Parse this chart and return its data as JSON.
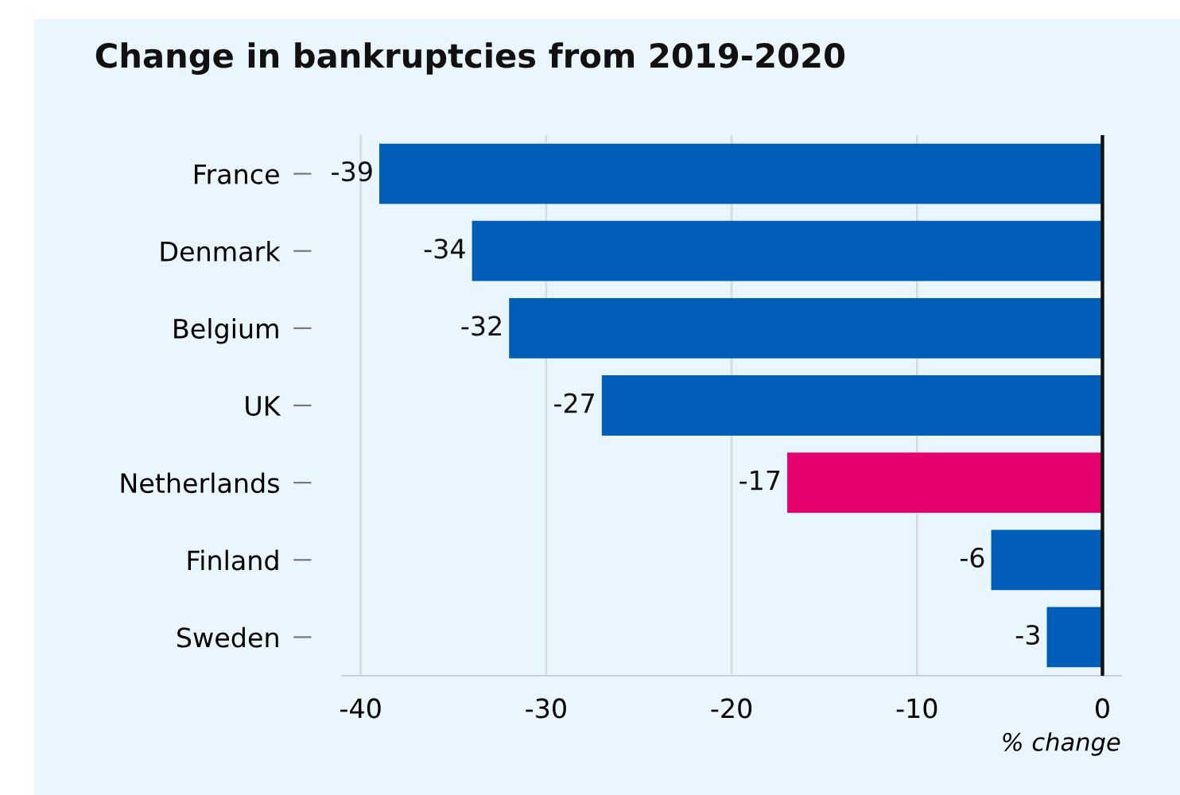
{
  "chart_data": {
    "type": "bar",
    "orientation": "horizontal",
    "title": "Change in bankruptcies from 2019-2020",
    "xlabel": "% change",
    "categories": [
      "France",
      "Denmark",
      "Belgium",
      "UK",
      "Netherlands",
      "Finland",
      "Sweden"
    ],
    "values": [
      -39,
      -34,
      -32,
      -27,
      -17,
      -6,
      -3
    ],
    "colors": [
      "#005eb8",
      "#005eb8",
      "#005eb8",
      "#005eb8",
      "#e5006d",
      "#005eb8",
      "#005eb8"
    ],
    "xlim": [
      -41,
      1
    ],
    "xticks": [
      -40,
      -30,
      -20,
      -10,
      0
    ],
    "grid": "x",
    "data_labels": true,
    "ref_lines": [
      {
        "axis": "x",
        "value": 0,
        "color": "#111111"
      }
    ]
  }
}
